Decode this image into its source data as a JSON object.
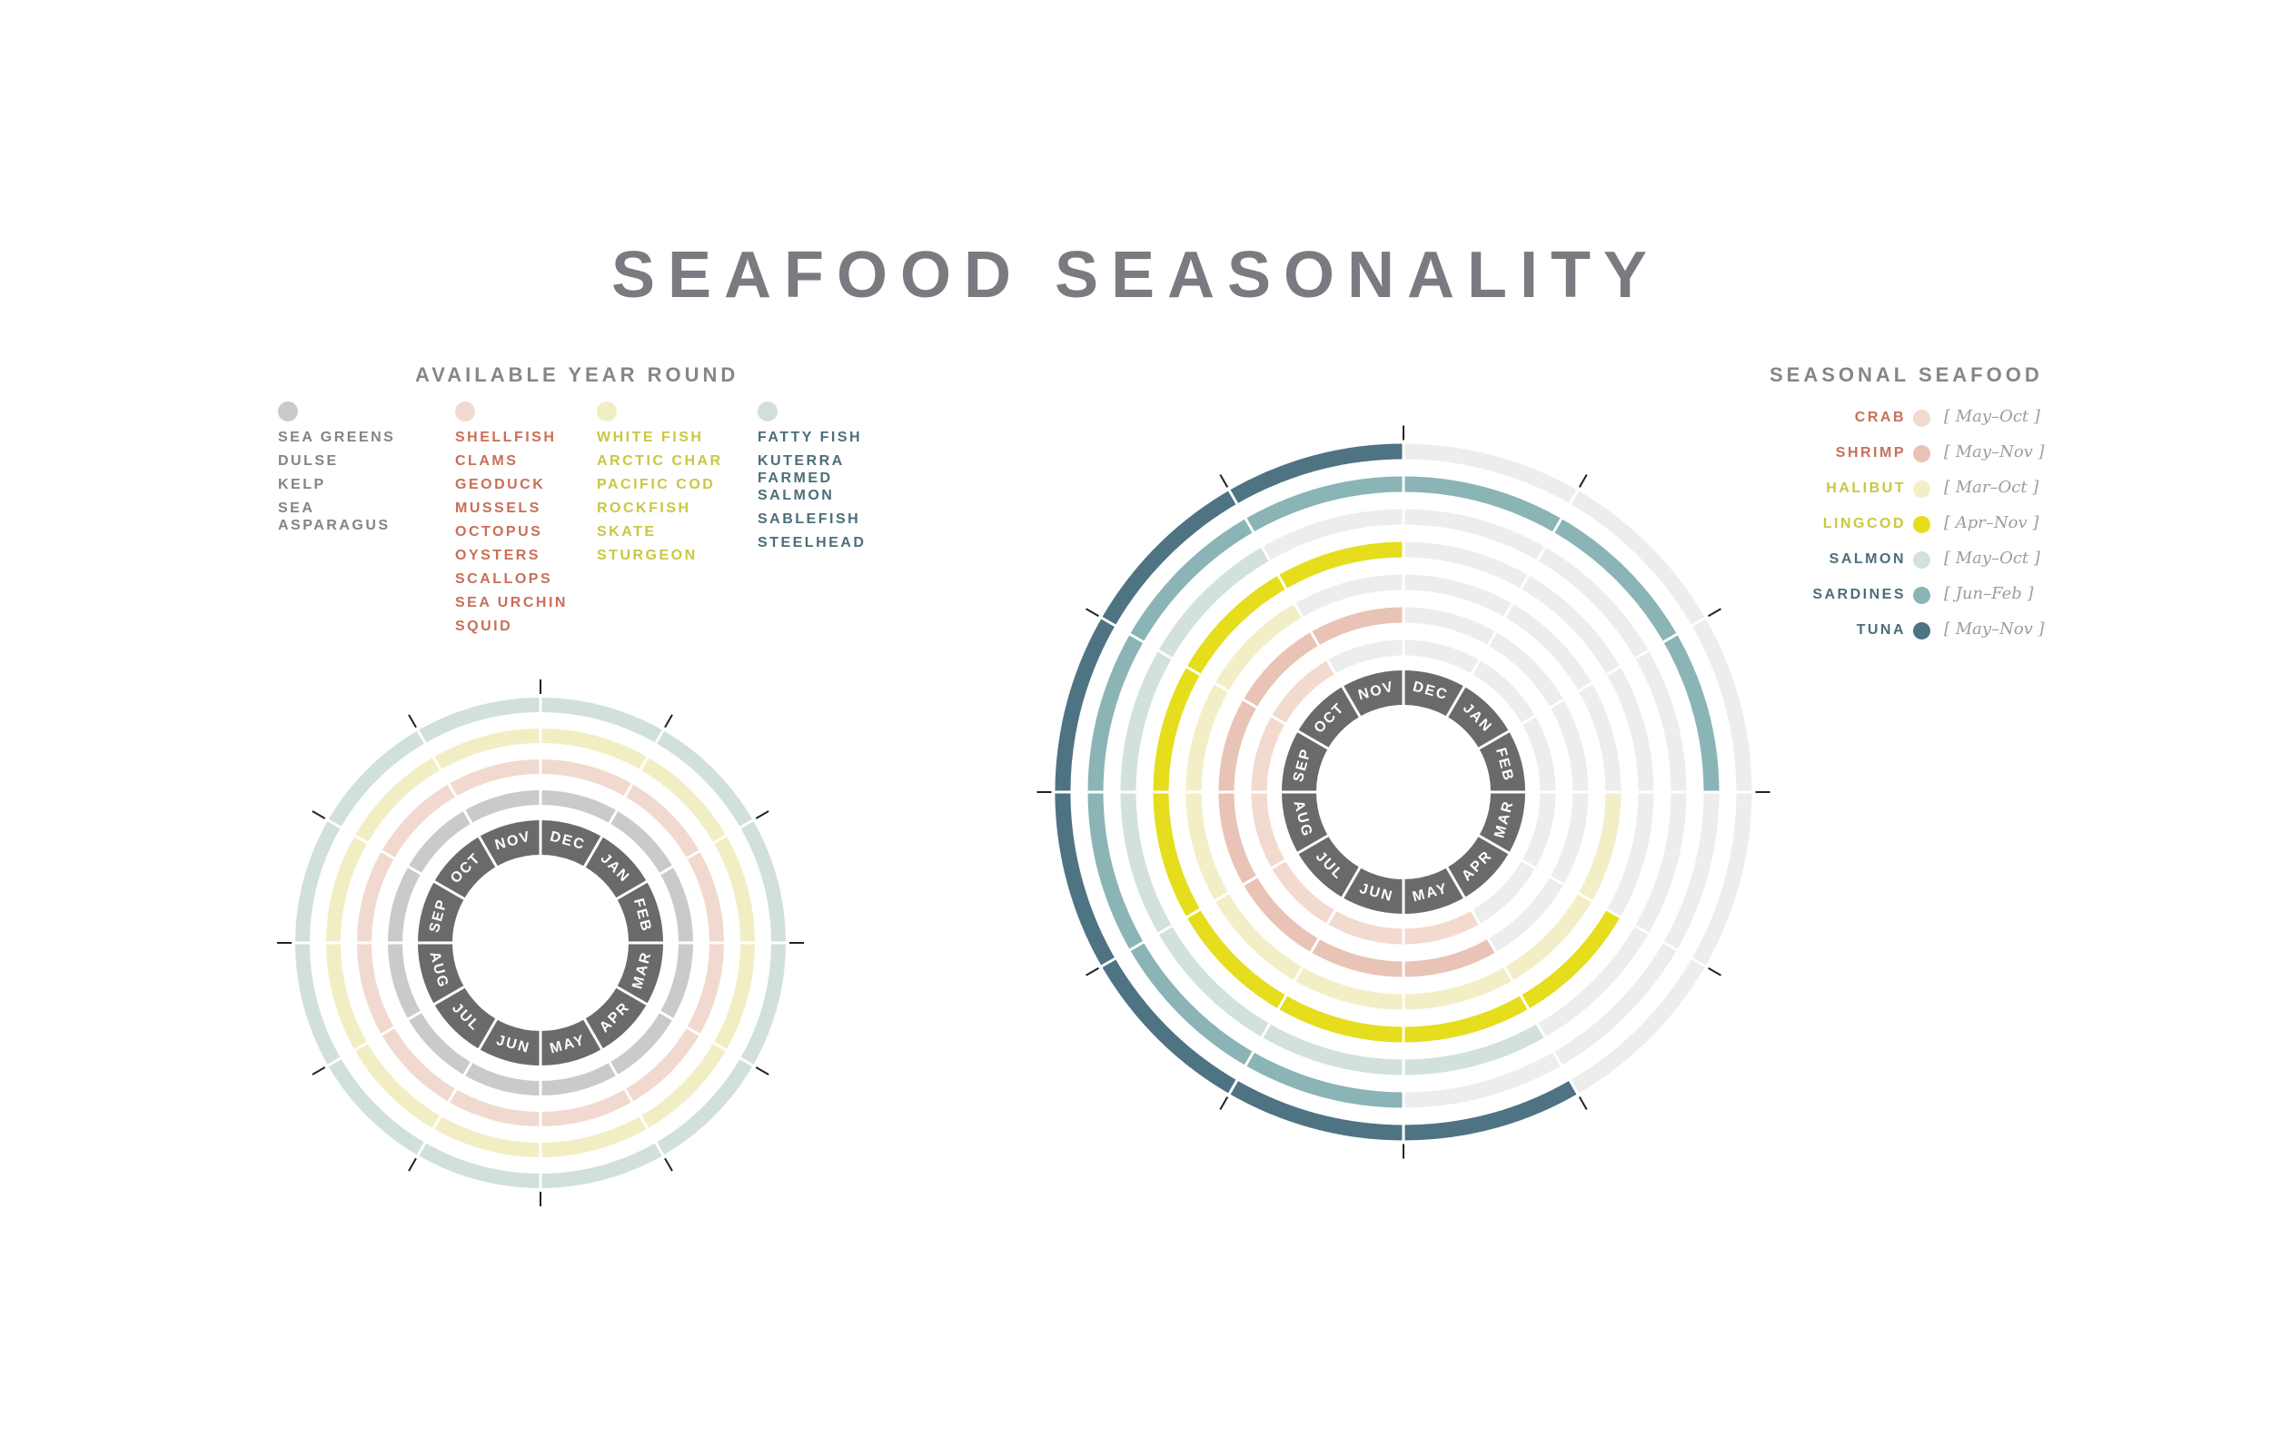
{
  "title": "SEAFOOD SEASONALITY",
  "year_round": {
    "heading": "AVAILABLE YEAR ROUND",
    "groups": [
      {
        "name": "SEA GREENS",
        "color": "#cbcac8",
        "text_color": "#84838a",
        "items": [
          "DULSE",
          "KELP",
          "SEA ASPARAGUS"
        ]
      },
      {
        "name": "SHELLFISH",
        "color": "#f2d9cf",
        "text_color": "#c96f58",
        "items": [
          "CLAMS",
          "GEODUCK",
          "MUSSELS",
          "OCTOPUS",
          "OYSTERS",
          "SCALLOPS",
          "SEA URCHIN",
          "SQUID"
        ]
      },
      {
        "name": "WHITE FISH",
        "color": "#f2eec4",
        "text_color": "#c9c743",
        "items": [
          "ARCTIC CHAR",
          "PACIFIC COD",
          "ROCKFISH",
          "SKATE",
          "STURGEON"
        ]
      },
      {
        "name": "FATTY FISH",
        "color": "#d2e0dd",
        "text_color": "#4c6e79",
        "items": [
          "KUTERRA FARMED SALMON",
          "SABLEFISH",
          "STEELHEAD"
        ]
      }
    ]
  },
  "seasonal": {
    "heading": "SEASONAL SEAFOOD",
    "items": [
      {
        "name": "CRAB",
        "range": "[ May–Oct ]",
        "color": "#f3dace",
        "text_color": "#c96f58"
      },
      {
        "name": "SHRIMP",
        "range": "[ May–Nov ]",
        "color": "#e9c3b5",
        "text_color": "#c96f58"
      },
      {
        "name": "HALIBUT",
        "range": "[ Mar–Oct ]",
        "color": "#f2efc6",
        "text_color": "#c9c743"
      },
      {
        "name": "LINGCOD",
        "range": "[ Apr–Nov ]",
        "color": "#e6dd1c",
        "text_color": "#c9c743"
      },
      {
        "name": "SALMON",
        "range": "[ May–Oct ]",
        "color": "#d3e1de",
        "text_color": "#4c6e79"
      },
      {
        "name": "SARDINES",
        "range": "[ Jun–Feb ]",
        "color": "#8ab4b5",
        "text_color": "#4c6e79"
      },
      {
        "name": "TUNA",
        "range": "[ May–Nov ]",
        "color": "#4e7383",
        "text_color": "#4c6e79"
      }
    ]
  },
  "chart_data": [
    {
      "type": "radial",
      "title": "AVAILABLE YEAR ROUND",
      "months": [
        "DEC",
        "JAN",
        "FEB",
        "MAR",
        "APR",
        "MAY",
        "JUN",
        "JUL",
        "AUG",
        "SEP",
        "OCT",
        "NOV"
      ],
      "series": [
        {
          "name": "SEA GREENS",
          "start": "DEC",
          "end": "NOV",
          "months_available": 12,
          "color": "#cbcac8"
        },
        {
          "name": "SHELLFISH",
          "start": "DEC",
          "end": "NOV",
          "months_available": 12,
          "color": "#f2d9cf"
        },
        {
          "name": "WHITE FISH",
          "start": "DEC",
          "end": "NOV",
          "months_available": 12,
          "color": "#f2eec4"
        },
        {
          "name": "FATTY FISH",
          "start": "DEC",
          "end": "NOV",
          "months_available": 12,
          "color": "#d2e0dd"
        }
      ]
    },
    {
      "type": "radial",
      "title": "SEASONAL SEAFOOD",
      "months": [
        "DEC",
        "JAN",
        "FEB",
        "MAR",
        "APR",
        "MAY",
        "JUN",
        "JUL",
        "AUG",
        "SEP",
        "OCT",
        "NOV"
      ],
      "series": [
        {
          "name": "CRAB",
          "start": "MAY",
          "end": "OCT",
          "color": "#f3dace"
        },
        {
          "name": "SHRIMP",
          "start": "MAY",
          "end": "NOV",
          "color": "#e9c3b5"
        },
        {
          "name": "HALIBUT",
          "start": "MAR",
          "end": "OCT",
          "color": "#f2efc6"
        },
        {
          "name": "LINGCOD",
          "start": "APR",
          "end": "NOV",
          "color": "#e6dd1c"
        },
        {
          "name": "SALMON",
          "start": "MAY",
          "end": "OCT",
          "color": "#d3e1de"
        },
        {
          "name": "SARDINES",
          "start": "JUN",
          "end": "FEB",
          "color": "#8ab4b5"
        },
        {
          "name": "TUNA",
          "start": "MAY",
          "end": "NOV",
          "color": "#4e7383"
        }
      ]
    }
  ]
}
